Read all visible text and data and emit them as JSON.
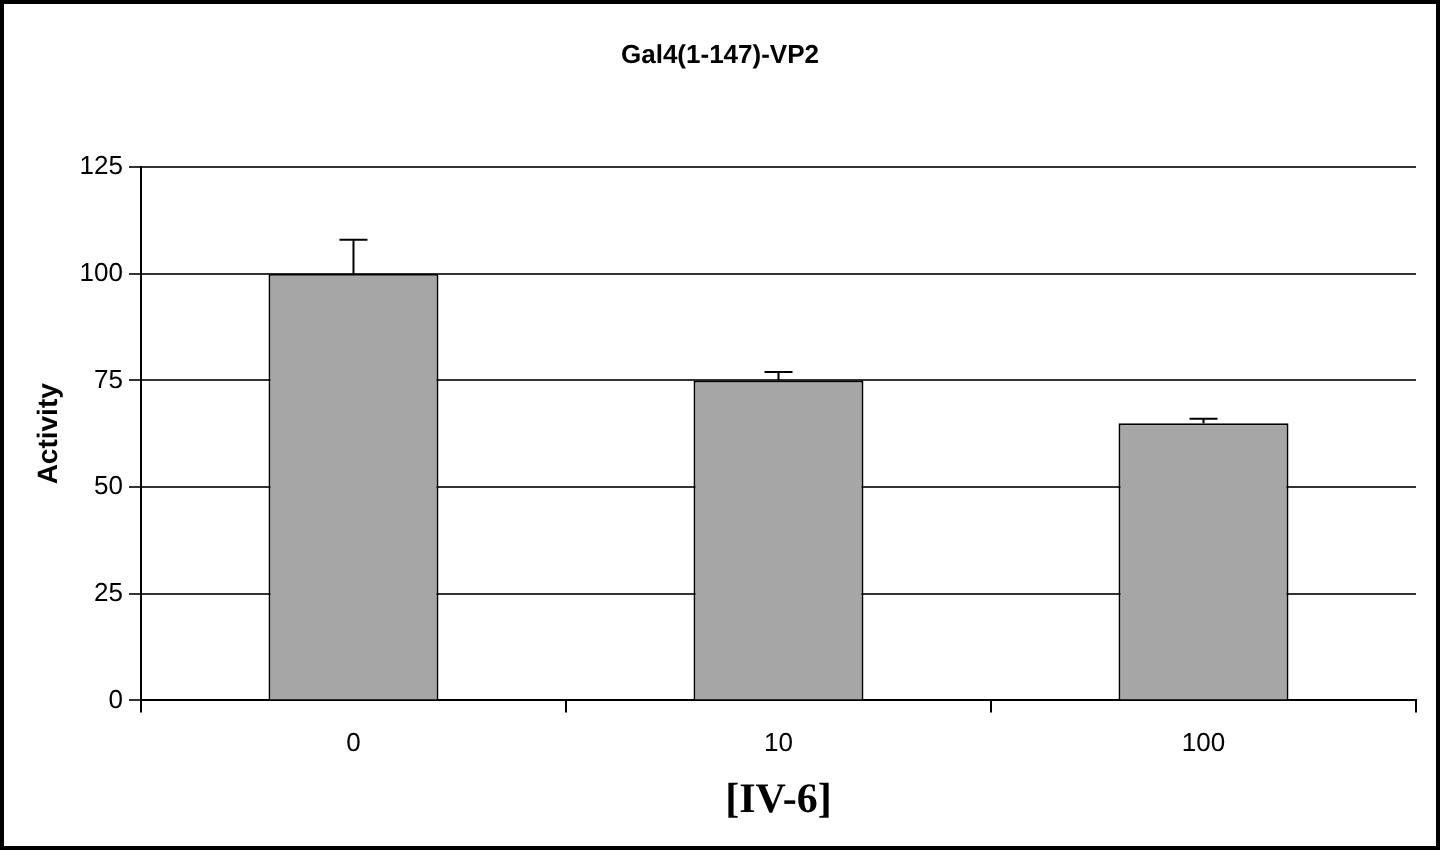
{
  "chart_data": {
    "type": "bar",
    "title": "Gal4(1-147)-VP2",
    "xlabel": "[IV-6]",
    "ylabel": "Activity",
    "categories": [
      "0",
      "10",
      "100"
    ],
    "values": [
      100,
      75,
      65
    ],
    "color": "#a6a6a6",
    "errors": [
      [
        100,
        108
      ],
      [
        75,
        77
      ],
      [
        65,
        66
      ]
    ],
    "ylim": [
      0,
      125
    ],
    "yticks": [
      0,
      25,
      50,
      75,
      100,
      125
    ],
    "grid": "y",
    "legend": false
  }
}
